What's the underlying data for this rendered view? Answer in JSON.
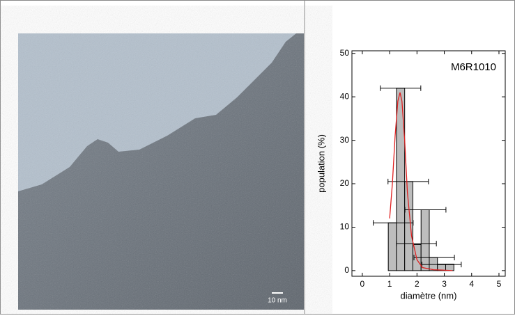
{
  "chart_data": {
    "type": "histogram",
    "annotation": "M6R1010",
    "scale_bar": "10 nm",
    "xlabel": "diamètre (nm)",
    "ylabel": "population (%)",
    "bins": [
      0.95,
      1.25,
      1.55,
      1.85,
      2.15,
      2.45,
      2.75,
      3.05,
      3.35
    ],
    "values": [
      11,
      42,
      20.5,
      6,
      14,
      3,
      1.5,
      1.5
    ],
    "color": "#bdbdbd",
    "error_bars": {
      "x": [
        1.4,
        1.68,
        1.13,
        2.31,
        1.98,
        2.63,
        2.9
      ],
      "y": [
        42,
        20.5,
        11,
        14,
        6.2,
        3,
        1.4
      ],
      "xerr": [
        0.74,
        0.74,
        0.73,
        0.75,
        0.73,
        0.74,
        0.72
      ]
    },
    "fit": {
      "color": "#e02020",
      "x": [
        1.0,
        1.1,
        1.2,
        1.3,
        1.38,
        1.45,
        1.55,
        1.65,
        1.8,
        2.0,
        2.2,
        2.6,
        3.0,
        3.3
      ],
      "y": [
        12,
        20,
        31,
        39,
        41,
        39,
        30,
        18,
        8,
        2.5,
        0.7,
        0.2,
        0.1,
        0
      ]
    },
    "xlim": [
      -0.38,
      5.23
    ],
    "ylim": [
      -1.3,
      50.6
    ],
    "xticks": [
      0,
      1,
      2,
      3,
      4,
      5
    ],
    "yticks": [
      0,
      10,
      20,
      30,
      40,
      50
    ]
  }
}
